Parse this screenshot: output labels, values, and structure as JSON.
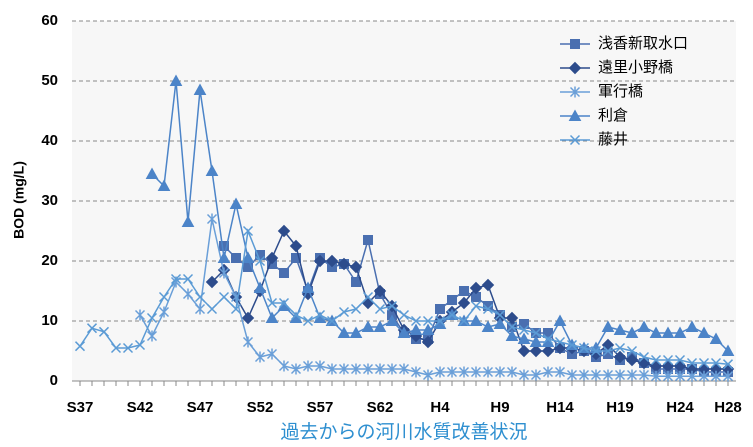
{
  "chart_data": {
    "type": "line",
    "y_label": "BOD (mg/L)",
    "caption": "過去からの河川水質改善状況",
    "categories": [
      "S37",
      null,
      null,
      null,
      null,
      "S42",
      null,
      null,
      null,
      null,
      "S47",
      null,
      null,
      null,
      null,
      "S52",
      null,
      null,
      null,
      null,
      "S57",
      null,
      null,
      null,
      null,
      "S62",
      null,
      null,
      null,
      null,
      "H4",
      null,
      null,
      null,
      null,
      "H9",
      null,
      null,
      null,
      null,
      "H14",
      null,
      null,
      null,
      null,
      "H19",
      null,
      null,
      null,
      null,
      "H24",
      null,
      null,
      null,
      "H28"
    ],
    "ylim": [
      0,
      60
    ],
    "yticks": [
      0,
      10,
      20,
      30,
      40,
      50,
      60
    ],
    "grid": true,
    "legend": "upper right",
    "series": [
      {
        "name": "浅香新取水口",
        "color": "#4a6fb0",
        "marker": "square",
        "values": [
          null,
          null,
          null,
          null,
          null,
          null,
          null,
          null,
          null,
          null,
          null,
          null,
          22.5,
          20.5,
          19,
          21,
          19.5,
          18,
          20.5,
          15,
          20.5,
          19,
          19.5,
          16.5,
          23.5,
          14.5,
          11,
          8,
          7,
          7,
          12,
          13.5,
          15,
          14,
          12.5,
          11,
          9,
          9.5,
          8,
          8,
          5.5,
          4.5,
          5,
          4,
          4.5,
          3.5,
          4,
          3,
          2,
          2,
          2,
          2,
          1.5,
          1.5,
          1.5
        ]
      },
      {
        "name": "遠里小野橋",
        "color": "#2d4c8c",
        "marker": "diamond",
        "values": [
          null,
          null,
          null,
          null,
          null,
          null,
          null,
          null,
          null,
          null,
          null,
          16.5,
          18.5,
          14,
          10.5,
          15,
          20.5,
          25,
          22.5,
          14.5,
          20,
          20,
          19.5,
          19,
          13,
          15,
          12.5,
          8.5,
          7.5,
          6.5,
          10,
          11.5,
          13,
          15.5,
          16,
          10.5,
          10.5,
          5,
          5,
          5,
          5.5,
          5.5,
          5,
          4.5,
          6,
          4,
          3.5,
          3,
          2.5,
          2.5,
          2.5,
          2,
          2,
          2,
          2
        ]
      },
      {
        "name": "軍行橋",
        "color": "#6a9fd8",
        "marker": "asterisk",
        "values": [
          null,
          null,
          null,
          null,
          null,
          11,
          7.5,
          11.5,
          16.5,
          14.5,
          12,
          27,
          18,
          14,
          6.5,
          4,
          4.5,
          2.5,
          2,
          2.5,
          2.5,
          2,
          2,
          2,
          2,
          2,
          2,
          2,
          1.5,
          1,
          1.5,
          1.5,
          1.5,
          1.5,
          1.5,
          1.5,
          1.5,
          1,
          1,
          1.5,
          1.5,
          1,
          1,
          1,
          1,
          1,
          1,
          1,
          0.8,
          0.8,
          0.8,
          0.8,
          0.8,
          0.8,
          0.8
        ]
      },
      {
        "name": "利倉",
        "color": "#4c84c8",
        "marker": "triangle",
        "values": [
          null,
          null,
          null,
          null,
          null,
          null,
          34.5,
          32.5,
          50,
          26.5,
          48.5,
          35,
          20.5,
          29.5,
          20.5,
          15.5,
          10.5,
          12.5,
          10.5,
          15.5,
          10.5,
          10,
          8,
          8,
          9,
          9,
          10,
          8,
          8.5,
          8.5,
          9.5,
          11,
          10,
          10,
          9,
          9.5,
          7.5,
          7,
          6.5,
          6.5,
          10,
          6,
          5.5,
          5.5,
          9,
          8.5,
          8,
          9,
          8,
          8,
          8,
          9,
          8,
          7,
          5
        ]
      },
      {
        "name": "藤井",
        "color": "#5b9bd5",
        "marker": "x",
        "values": [
          5.8,
          8.8,
          8.2,
          5.5,
          5.5,
          6,
          10.5,
          14,
          17,
          17,
          14,
          12,
          14,
          12,
          25,
          20,
          13,
          13,
          11,
          10,
          11,
          10,
          11.5,
          12,
          14,
          12,
          12.5,
          11,
          10,
          10,
          10,
          11,
          10,
          12.5,
          12,
          11,
          9,
          8.5,
          8,
          7,
          6.5,
          6,
          5.5,
          5,
          5,
          5.5,
          5,
          4,
          3.5,
          3.5,
          3.5,
          3,
          3,
          3,
          2.8
        ]
      }
    ]
  }
}
